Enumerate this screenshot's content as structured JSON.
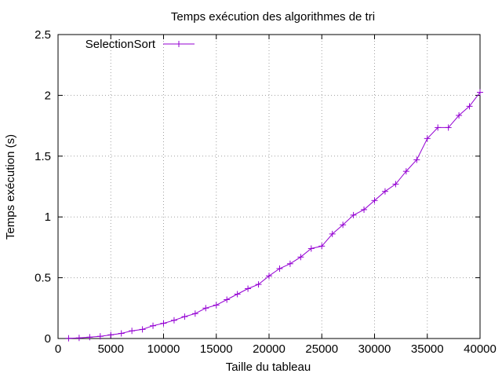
{
  "chart_data": {
    "type": "line",
    "title": "Temps exécution des algorithmes de tri",
    "xlabel": "Taille du tableau",
    "ylabel": "Temps exécution (s)",
    "xlim": [
      0,
      40000
    ],
    "ylim": [
      0,
      2.5
    ],
    "xticks": [
      0,
      5000,
      10000,
      15000,
      20000,
      25000,
      30000,
      35000,
      40000
    ],
    "yticks": [
      0,
      0.5,
      1,
      1.5,
      2,
      2.5
    ],
    "grid": true,
    "legend_position": "top-left",
    "series": [
      {
        "name": "SelectionSort",
        "color": "#9400d3",
        "marker": "plus",
        "x": [
          1000,
          2000,
          3000,
          4000,
          5000,
          6000,
          7000,
          8000,
          9000,
          10000,
          11000,
          12000,
          13000,
          14000,
          15000,
          16000,
          17000,
          18000,
          19000,
          20000,
          21000,
          22000,
          23000,
          24000,
          25000,
          26000,
          27000,
          28000,
          29000,
          30000,
          31000,
          32000,
          33000,
          34000,
          35000,
          36000,
          37000,
          38000,
          39000,
          40000
        ],
        "y": [
          0.002,
          0.005,
          0.011,
          0.018,
          0.03,
          0.042,
          0.063,
          0.075,
          0.105,
          0.125,
          0.15,
          0.18,
          0.205,
          0.25,
          0.275,
          0.32,
          0.365,
          0.41,
          0.445,
          0.515,
          0.575,
          0.615,
          0.67,
          0.74,
          0.76,
          0.86,
          0.935,
          1.015,
          1.06,
          1.135,
          1.21,
          1.27,
          1.375,
          1.47,
          1.645,
          1.735,
          1.735,
          1.835,
          1.91,
          2.025
        ]
      }
    ]
  }
}
